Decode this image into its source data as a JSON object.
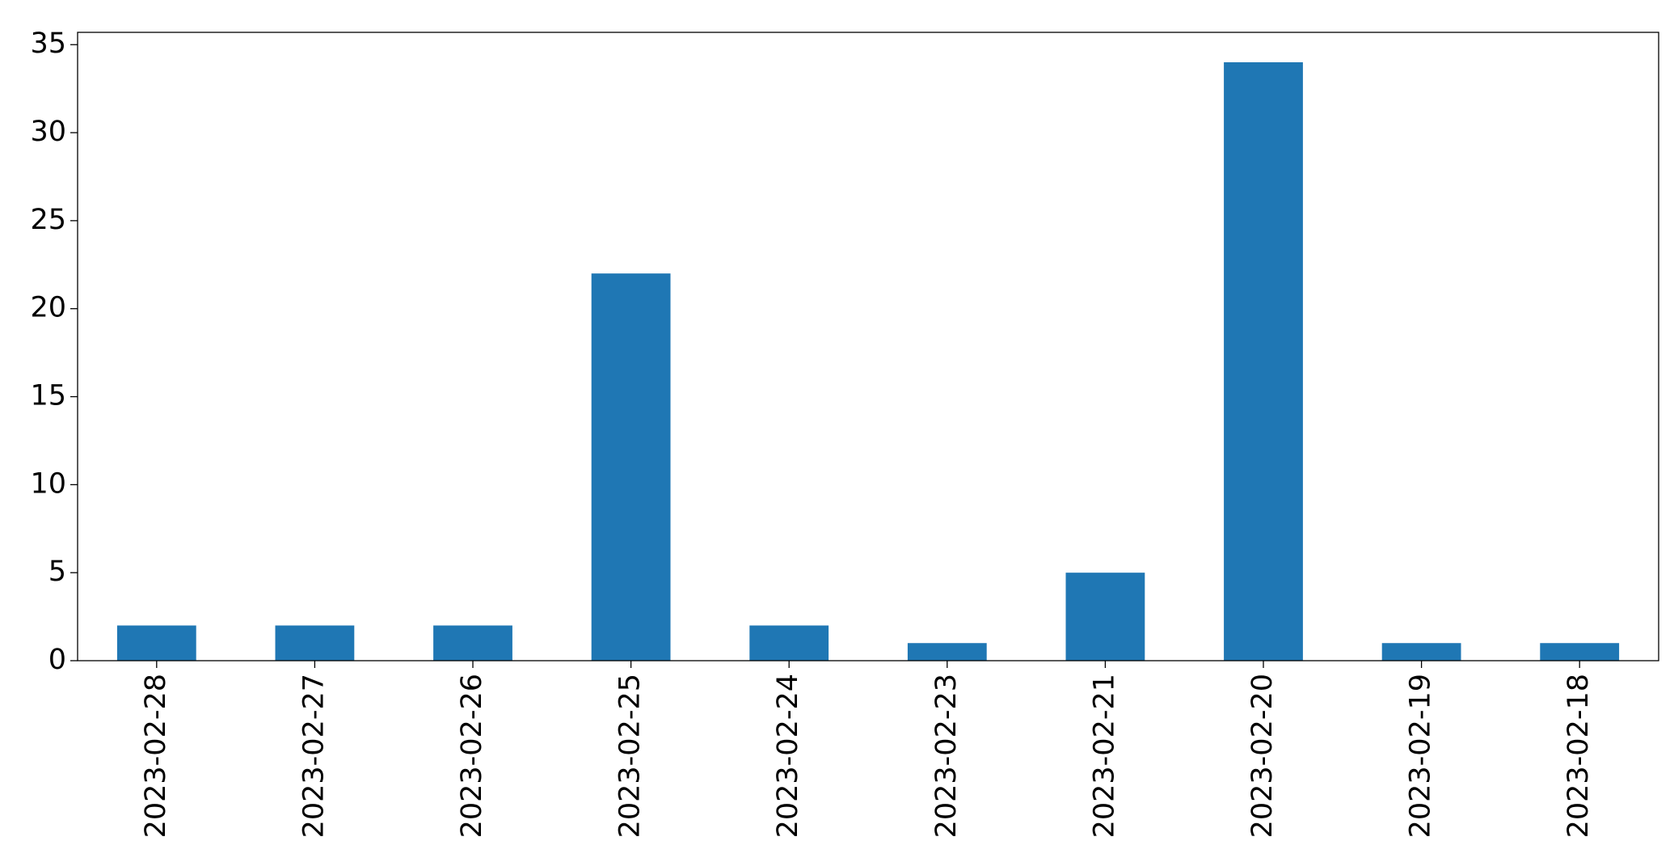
{
  "chart_data": {
    "type": "bar",
    "categories": [
      "2023-02-28",
      "2023-02-27",
      "2023-02-26",
      "2023-02-25",
      "2023-02-24",
      "2023-02-23",
      "2023-02-21",
      "2023-02-20",
      "2023-02-19",
      "2023-02-18"
    ],
    "values": [
      2,
      2,
      2,
      22,
      2,
      1,
      5,
      34,
      1,
      1
    ],
    "color": "#1f77b4",
    "ylim": [
      0,
      35.7
    ],
    "yticks": [
      0,
      5,
      10,
      15,
      20,
      25,
      30,
      35
    ],
    "grid": false
  }
}
